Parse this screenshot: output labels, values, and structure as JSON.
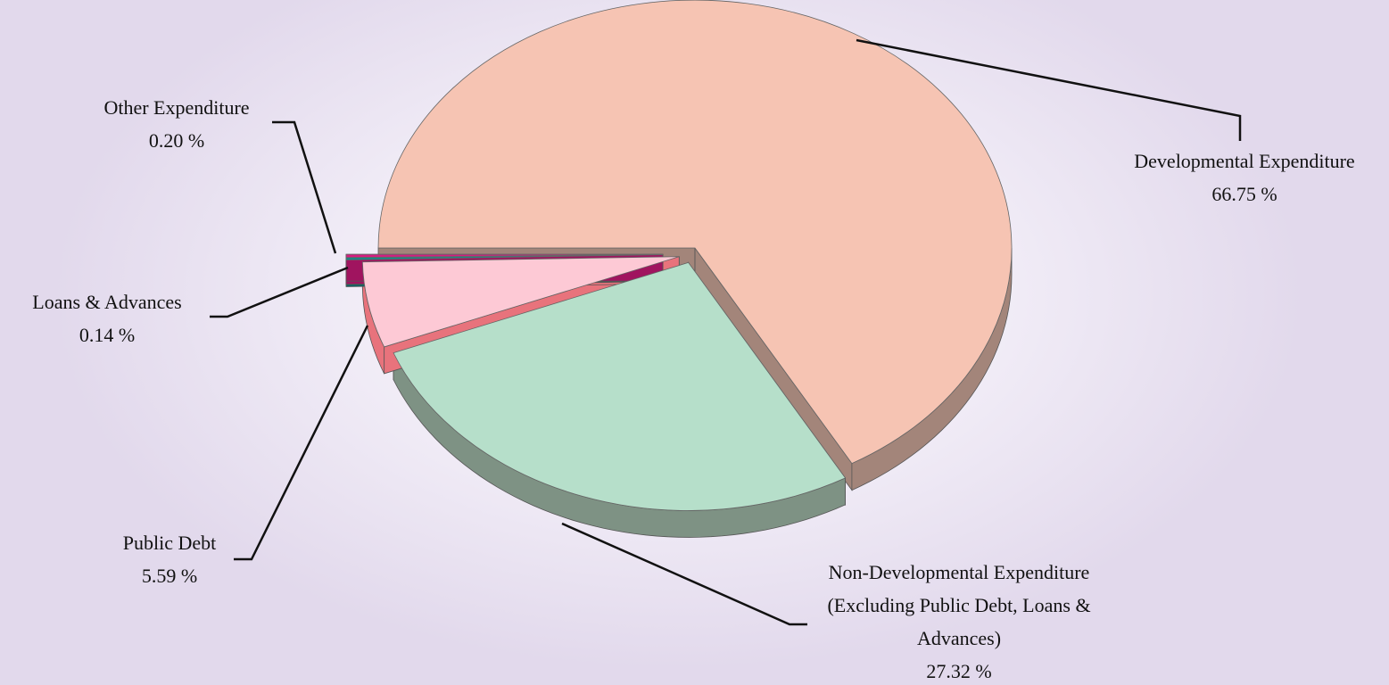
{
  "chart_data": {
    "type": "pie",
    "categories": [
      "Developmental Expenditure",
      "Non-Developmental Expenditure  (Excluding Public Debt, Loans & Advances)",
      "Public Debt",
      "Loans & Advances",
      "Other Expenditure"
    ],
    "values": [
      66.75,
      27.32,
      5.59,
      0.14,
      0.2
    ],
    "value_labels": [
      "66.75 %",
      "27.32 %",
      "5.59 %",
      "0.14 %",
      "0.20 %"
    ],
    "colors": [
      "#f6c4b3",
      "#b6dfca",
      "#fdc9d5",
      "#0f8a8a",
      "#d61d82"
    ],
    "side_colors": [
      "#a3857a",
      "#7e9284",
      "#e8737c",
      "#0a6464",
      "#a0145f"
    ]
  }
}
